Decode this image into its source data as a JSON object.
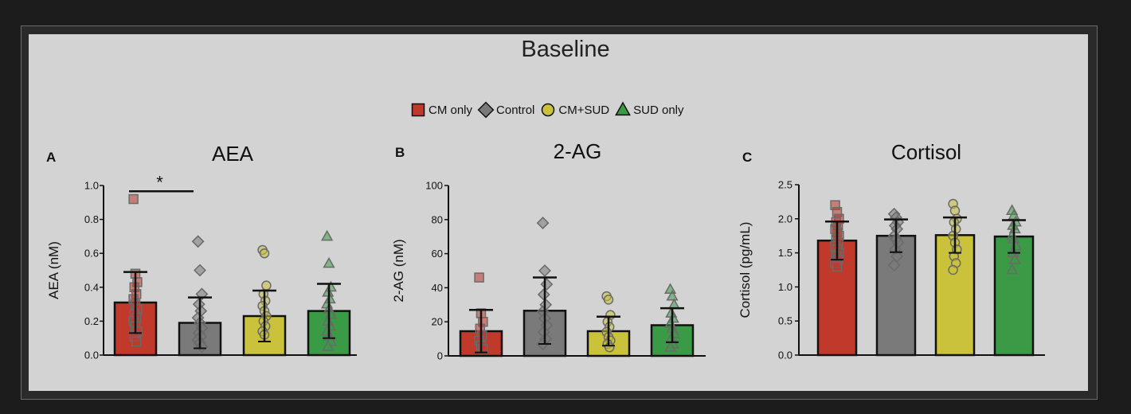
{
  "title": "Baseline",
  "legend": [
    {
      "label": "CM only",
      "color": "#c0392b",
      "shape": "square"
    },
    {
      "label": "Control",
      "color": "#7a7a7a",
      "shape": "diamond"
    },
    {
      "label": "CM+SUD",
      "color": "#c9c23a",
      "shape": "circle"
    },
    {
      "label": "SUD only",
      "color": "#3a9a46",
      "shape": "triangle"
    }
  ],
  "chart_data": [
    {
      "type": "bar",
      "panel_label": "A",
      "title": "AEA",
      "ylabel": "AEA (nM)",
      "ylim": [
        0,
        1.0
      ],
      "yticks": [
        "0.0",
        "0.2",
        "0.4",
        "0.6",
        "0.8",
        "1.0"
      ],
      "categories": [
        "CM only",
        "Control",
        "CM+SUD",
        "SUD only"
      ],
      "values": [
        0.31,
        0.19,
        0.23,
        0.26
      ],
      "error": [
        0.18,
        0.15,
        0.15,
        0.16
      ],
      "points": [
        [
          0.92,
          0.48,
          0.43,
          0.4,
          0.36,
          0.33,
          0.3,
          0.27,
          0.24,
          0.22,
          0.2,
          0.17,
          0.14,
          0.11,
          0.08
        ],
        [
          0.67,
          0.5,
          0.36,
          0.3,
          0.26,
          0.22,
          0.19,
          0.16,
          0.13,
          0.11,
          0.09,
          0.07,
          0.05
        ],
        [
          0.62,
          0.6,
          0.41,
          0.36,
          0.32,
          0.29,
          0.26,
          0.23,
          0.2,
          0.17,
          0.14,
          0.12
        ],
        [
          0.7,
          0.54,
          0.4,
          0.37,
          0.33,
          0.3,
          0.27,
          0.24,
          0.2,
          0.17,
          0.14,
          0.11,
          0.08,
          0.05
        ]
      ],
      "significance": {
        "from": 0,
        "to": 1,
        "label": "*",
        "y": 0.98
      }
    },
    {
      "type": "bar",
      "panel_label": "B",
      "title": "2-AG",
      "ylabel": "2-AG (nM)",
      "ylim": [
        0,
        100
      ],
      "yticks": [
        "0",
        "20",
        "40",
        "60",
        "80",
        "100"
      ],
      "categories": [
        "CM only",
        "Control",
        "CM+SUD",
        "SUD only"
      ],
      "values": [
        14.5,
        26.5,
        14.5,
        18
      ],
      "error": [
        12.5,
        19.5,
        8.5,
        10
      ],
      "points": [
        [
          46,
          25,
          20,
          16,
          12,
          9,
          6,
          4
        ],
        [
          78,
          50,
          42,
          36,
          30,
          26,
          22,
          18,
          14,
          10,
          7
        ],
        [
          35,
          33,
          24,
          20,
          17,
          14,
          11,
          9,
          7,
          5
        ],
        [
          39,
          35,
          30,
          25,
          22,
          19,
          16,
          13,
          10,
          7,
          5
        ]
      ]
    },
    {
      "type": "bar",
      "panel_label": "C",
      "title": "Cortisol",
      "ylabel": "Cortisol (pg/mL)",
      "ylim": [
        0,
        2.5
      ],
      "yticks": [
        "0.0",
        "0.5",
        "1.0",
        "1.5",
        "2.0",
        "2.5"
      ],
      "categories": [
        "CM only",
        "Control",
        "CM+SUD",
        "SUD only"
      ],
      "values": [
        1.68,
        1.75,
        1.76,
        1.74
      ],
      "error": [
        0.28,
        0.24,
        0.26,
        0.24
      ],
      "points": [
        [
          2.2,
          2.1,
          2.0,
          1.95,
          1.9,
          1.85,
          1.8,
          1.75,
          1.7,
          1.65,
          1.6,
          1.55,
          1.5,
          1.45,
          1.4,
          1.35,
          1.3
        ],
        [
          2.07,
          2.02,
          1.95,
          1.9,
          1.85,
          1.75,
          1.7,
          1.65,
          1.55,
          1.45,
          1.32
        ],
        [
          2.22,
          2.12,
          2.0,
          1.95,
          1.85,
          1.75,
          1.65,
          1.55,
          1.45,
          1.35,
          1.25
        ],
        [
          2.12,
          2.05,
          1.95,
          1.9,
          1.85,
          1.75,
          1.7,
          1.6,
          1.5,
          1.4,
          1.25
        ]
      ]
    }
  ]
}
